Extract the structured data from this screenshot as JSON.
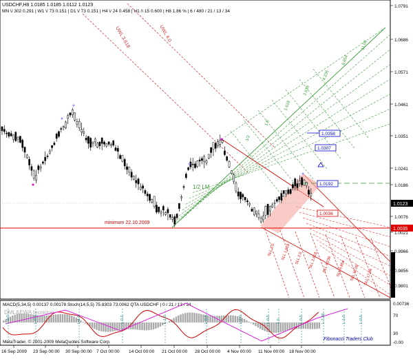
{
  "header": {
    "symbol_line": "USDCHF,H8  1.0185 1.0185 1.0112 1.0123",
    "stats_line": "MN \\/ 302  0.291 | W1 \\/ 73  0.151 | D1 \\/ 73  0.151 | H4 \\/ 24  0.458 | H1 /\\ 15  0.600 | H8  1.86 %  | 6 / 480 / 21 / 13 / 34"
  },
  "price_axis": {
    "labels": [
      "1.0791",
      "1.0686",
      "1.0571",
      "1.0461",
      "1.0351",
      "1.0241",
      "1.0186",
      "1.0076",
      "1.0021",
      "0.9966",
      "0.9856",
      "0.9801"
    ],
    "current_price": "1.0123",
    "level_red": "1.0035"
  },
  "time_axis": {
    "labels": [
      "16 Sep 2009",
      "23 Sep 00:00",
      "30 Sep 00:00",
      "7 Oct 00:00",
      "14 Oct 00:00",
      "21 Oct 00:00",
      "28 Oct 00:00",
      "4 Nov 00:00",
      "11 Nov 00:00",
      "18 Nov 00:00"
    ]
  },
  "annotations": {
    "minimum_label": "minimum 22.10.2009",
    "uwl1": "UWL 3.618",
    "uwl2": "UWL 4.0",
    "half_label": "1/2 LM",
    "target1": "1.0358",
    "target2": "1.0307",
    "target3": "1.0192",
    "target4": "1.0036",
    "green_fan_labels": [
      "1/2",
      "1.0",
      "1.618",
      "2.618",
      "4.236",
      "6.854",
      "11.09"
    ],
    "red_fan_labels": [
      "SLL 1.0",
      "SLL 1.618",
      "SLL 2.0",
      "SLL 2.618",
      "SLL 4.236",
      "SLL 6.854",
      "SLL 11.09",
      "SLL 17.94"
    ]
  },
  "macd_panel": {
    "header": "MACD(5,34,5) 0.00137 0.00178 Stoch(14,5,5) 75.8303 73.0062  QTA USDCHF  | 0 / 21 / 13 / 34",
    "subheader": "DML&EWA tecnique",
    "axis_labels": [
      "0.00736",
      "70",
      "30",
      "-0.00"
    ],
    "tick_marks": [
      "L-1.0",
      "L-0.5",
      "L-1.0",
      "L-0.5",
      "L-1.0",
      "L-0.5",
      "L-1.0",
      "L-0.5",
      "1.0",
      "L-0.5",
      "L-7.86",
      "L-1.0",
      "L-0.5"
    ],
    "copyright": "MetaTrader, © 2001-2009 MetaQuotes Software Corp.",
    "watermark": "Fibonacci Traders Club"
  },
  "colors": {
    "candle": "#000000",
    "red_line": "#dd0000",
    "green_fan": "#3a9a3a",
    "blue_box": "#0000cc",
    "macd_hist": "#a8a8a8",
    "stoch_red": "#d00000",
    "magenta": "#dd22dd"
  }
}
